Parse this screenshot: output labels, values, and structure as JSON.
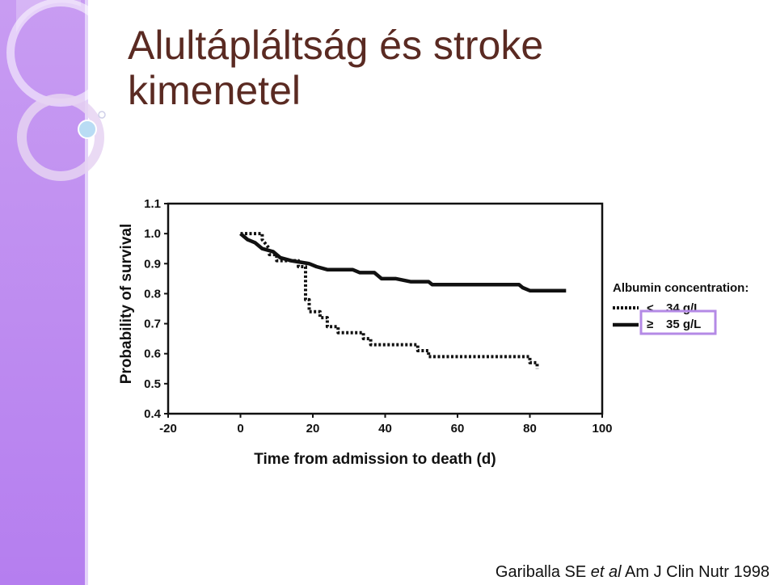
{
  "slide": {
    "title_line1": "Alultápláltság és stroke",
    "title_line2": "kimenetel",
    "caption": {
      "authors": "Gariballa SE",
      "etal": "et al",
      "journal": "Am J Clin Nutr 1998"
    },
    "colors": {
      "sidebar": "#b57eef",
      "title": "#5a2a22",
      "highlight_box": "#b48ae6"
    }
  },
  "chart_data": {
    "type": "line",
    "xlabel": "Time from admission to death (d)",
    "ylabel": "Probability of survival",
    "xlim": [
      -20,
      100
    ],
    "ylim": [
      0.4,
      1.1
    ],
    "x_ticks": [
      "-20",
      "0",
      "20",
      "40",
      "60",
      "80",
      "100"
    ],
    "y_ticks": [
      "0.4",
      "0.5",
      "0.6",
      "0.7",
      "0.8",
      "0.9",
      "1.0",
      "1.1"
    ],
    "legend": {
      "title": "Albumin concentration:",
      "placement": "right",
      "entries": [
        {
          "symbol": "<",
          "label": "34 g/L",
          "style": "dotted"
        },
        {
          "symbol": "≥",
          "label": "35 g/L",
          "style": "solid",
          "highlighted": true
        }
      ]
    },
    "series": [
      {
        "name": "< 34 g/L",
        "style": "dotted",
        "points": [
          [
            0,
            1.0
          ],
          [
            6,
            1.0
          ],
          [
            6,
            0.98
          ],
          [
            8,
            0.95
          ],
          [
            8,
            0.93
          ],
          [
            10,
            0.93
          ],
          [
            10,
            0.91
          ],
          [
            16,
            0.91
          ],
          [
            16,
            0.89
          ],
          [
            18,
            0.89
          ],
          [
            18,
            0.78
          ],
          [
            19,
            0.78
          ],
          [
            19,
            0.74
          ],
          [
            22,
            0.74
          ],
          [
            22,
            0.72
          ],
          [
            24,
            0.72
          ],
          [
            24,
            0.69
          ],
          [
            27,
            0.69
          ],
          [
            27,
            0.67
          ],
          [
            34,
            0.67
          ],
          [
            34,
            0.65
          ],
          [
            36,
            0.65
          ],
          [
            36,
            0.63
          ],
          [
            49,
            0.63
          ],
          [
            49,
            0.61
          ],
          [
            52,
            0.61
          ],
          [
            52,
            0.59
          ],
          [
            80,
            0.59
          ],
          [
            80,
            0.57
          ],
          [
            82,
            0.57
          ],
          [
            82,
            0.55
          ]
        ]
      },
      {
        "name": "≥ 35 g/L",
        "style": "solid",
        "points": [
          [
            0,
            1.0
          ],
          [
            2,
            0.98
          ],
          [
            4,
            0.97
          ],
          [
            6,
            0.95
          ],
          [
            9,
            0.94
          ],
          [
            11,
            0.92
          ],
          [
            14,
            0.91
          ],
          [
            19,
            0.9
          ],
          [
            21,
            0.89
          ],
          [
            24,
            0.88
          ],
          [
            31,
            0.88
          ],
          [
            33,
            0.87
          ],
          [
            37,
            0.87
          ],
          [
            39,
            0.85
          ],
          [
            43,
            0.85
          ],
          [
            47,
            0.84
          ],
          [
            52,
            0.84
          ],
          [
            53,
            0.83
          ],
          [
            77,
            0.83
          ],
          [
            78,
            0.82
          ],
          [
            80,
            0.81
          ],
          [
            90,
            0.81
          ]
        ]
      }
    ]
  }
}
